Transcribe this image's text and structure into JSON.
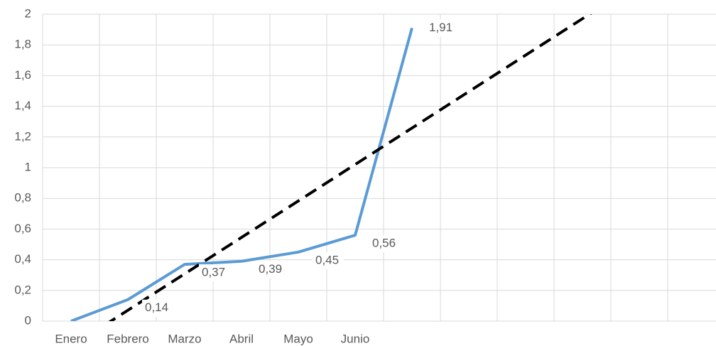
{
  "chart_data": {
    "type": "line",
    "categories": [
      "Enero",
      "Febrero",
      "Marzo",
      "Abril",
      "Mayo",
      "Junio",
      null,
      null,
      null,
      null,
      null,
      null
    ],
    "series": [
      {
        "color": "#5b9bd5",
        "values": [
          0,
          0.14,
          0.37,
          0.39,
          0.45,
          0.56,
          1.91,
          null,
          null,
          null,
          null,
          null
        ],
        "value_labels": [
          null,
          "0,14",
          "0,37",
          "0,39",
          "0,45",
          "0,56",
          "1,91",
          null,
          null,
          null,
          null,
          null
        ]
      }
    ],
    "trendline": {
      "type": "linear",
      "color": "#000000"
    },
    "ylim": [
      0,
      2
    ],
    "yticks": [
      0,
      {
        "value": 0.2,
        "label": "0,2"
      },
      {
        "value": 0.4,
        "label": "0,4"
      },
      {
        "value": 0.6,
        "label": "0,6"
      },
      {
        "value": 0.8,
        "label": "0,8"
      },
      1,
      {
        "value": 1.2,
        "label": "1,2"
      },
      {
        "value": 1.4,
        "label": "1,4"
      },
      {
        "value": 1.6,
        "label": "1,6"
      },
      {
        "value": 1.8,
        "label": "1,8"
      },
      2
    ],
    "grid": true
  }
}
